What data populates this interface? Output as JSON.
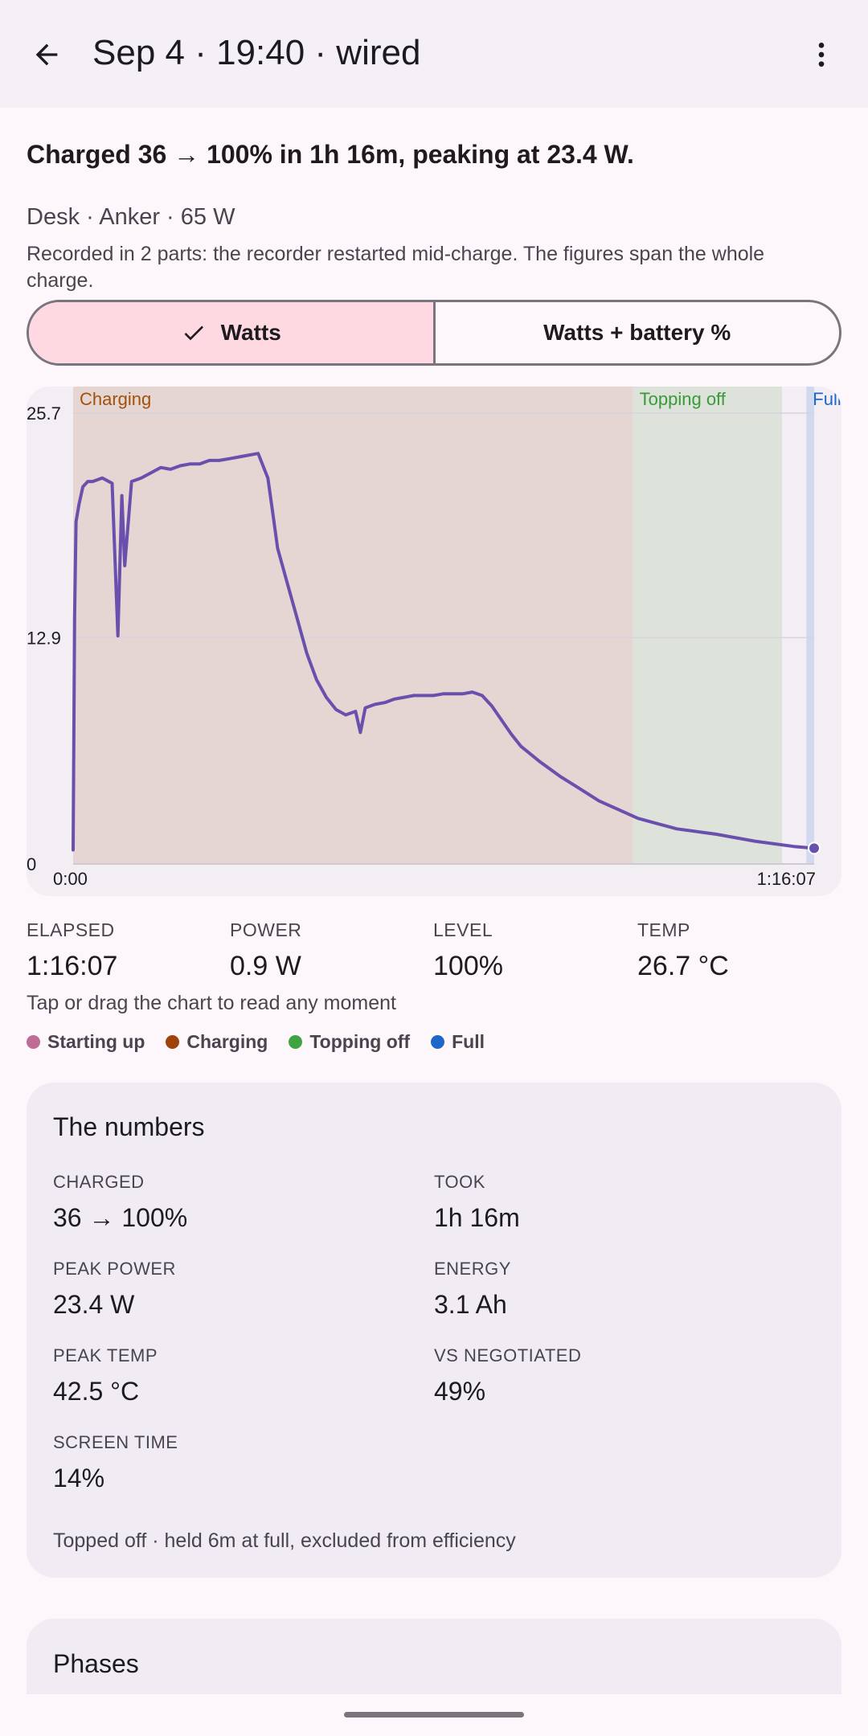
{
  "appbar": {
    "title": "Sep 4 · 19:40 · wired",
    "back_icon": "arrow-back-icon",
    "more_icon": "more-vert-icon"
  },
  "summary": "Charged 36 → 100% in 1h 16m, peaking at 23.4 W.",
  "subline": "Desk · Anker · 65 W",
  "note": "Recorded in 2 parts: the recorder restarted mid-charge. The figures span the whole charge.",
  "toggle": {
    "watts": "Watts",
    "watts_battery": "Watts + battery %",
    "selected": "watts"
  },
  "chart_data": {
    "type": "line",
    "y_ticks": [
      "25.7",
      "12.9",
      "0"
    ],
    "x_ticks": [
      "0:00",
      "1:16:07"
    ],
    "ylim": [
      0,
      25.7
    ],
    "xlim": [
      0,
      76.1
    ],
    "x_unit": "minutes",
    "phases": [
      {
        "label": "Charging",
        "start": 0,
        "end": 57.5,
        "color": "#e5d6d4",
        "label_color": "#a0520c"
      },
      {
        "label": "Topping off",
        "start": 57.5,
        "end": 72.8,
        "color": "#dde3da",
        "label_color": "#3a9a3a"
      },
      {
        "label": "Full",
        "start": 75.3,
        "end": 82.9,
        "color": "#d1d9f0",
        "label_color": "#1e66c8"
      }
    ],
    "series": [
      {
        "color": "#6a50ad",
        "x": [
          0,
          0.15,
          0.3,
          0.6,
          1.0,
          1.5,
          2.0,
          3.0,
          4.0,
          4.6,
          5.0,
          5.3,
          6.0,
          7.0,
          8.0,
          9.0,
          10.0,
          11.0,
          12.0,
          13.0,
          14.0,
          15.0,
          16.0,
          17.0,
          18.0,
          19.0,
          20.0,
          20.5,
          21.0,
          22.0,
          23.0,
          24.0,
          25.0,
          26.0,
          27.0,
          28.0,
          29.0,
          29.5,
          30.0,
          31.0,
          32.0,
          33.0,
          34.0,
          35.0,
          36.0,
          37.0,
          38.0,
          39.0,
          40.0,
          41.0,
          42.0,
          43.0,
          44.0,
          45.0,
          46.0,
          48.0,
          50.0,
          52.0,
          54.0,
          56.0,
          58.0,
          60.0,
          62.0,
          66.0,
          70.0,
          74.0,
          76.1
        ],
        "y": [
          0.8,
          14.0,
          19.5,
          20.5,
          21.5,
          21.8,
          21.8,
          22.0,
          21.7,
          13.0,
          21.0,
          17.0,
          21.8,
          22.0,
          22.3,
          22.6,
          22.5,
          22.7,
          22.8,
          22.8,
          23.0,
          23.0,
          23.1,
          23.2,
          23.3,
          23.4,
          22.0,
          20.0,
          18.0,
          16.0,
          14.0,
          12.0,
          10.5,
          9.5,
          8.8,
          8.5,
          8.7,
          7.5,
          8.9,
          9.1,
          9.2,
          9.4,
          9.5,
          9.6,
          9.6,
          9.6,
          9.7,
          9.7,
          9.7,
          9.8,
          9.6,
          9.0,
          8.2,
          7.4,
          6.7,
          5.8,
          5.0,
          4.3,
          3.6,
          3.1,
          2.6,
          2.3,
          2.0,
          1.7,
          1.3,
          1.0,
          0.9
        ]
      }
    ]
  },
  "metrics": [
    {
      "label": "ELAPSED",
      "value": "1:16:07"
    },
    {
      "label": "POWER",
      "value": "0.9 W"
    },
    {
      "label": "LEVEL",
      "value": "100%"
    },
    {
      "label": "TEMP",
      "value": "26.7 °C"
    }
  ],
  "hint": "Tap or drag the chart to read any moment",
  "legend": [
    {
      "label": "Starting up",
      "color": "#c06b96"
    },
    {
      "label": "Charging",
      "color": "#a0420c"
    },
    {
      "label": "Topping off",
      "color": "#3fa43f"
    },
    {
      "label": "Full",
      "color": "#1e66c8"
    }
  ],
  "numbers": {
    "title": "The numbers",
    "stats": [
      {
        "label": "CHARGED",
        "value": "36 → 100%"
      },
      {
        "label": "TOOK",
        "value": "1h 16m"
      },
      {
        "label": "PEAK POWER",
        "value": "23.4 W"
      },
      {
        "label": "ENERGY",
        "value": "3.1 Ah"
      },
      {
        "label": "PEAK TEMP",
        "value": "42.5 °C"
      },
      {
        "label": "VS NEGOTIATED",
        "value": "49%"
      },
      {
        "label": "SCREEN TIME",
        "value": "14%"
      }
    ],
    "footer": "Topped off · held 6m at full, excluded from efficiency"
  },
  "phases": {
    "title": "Phases"
  }
}
